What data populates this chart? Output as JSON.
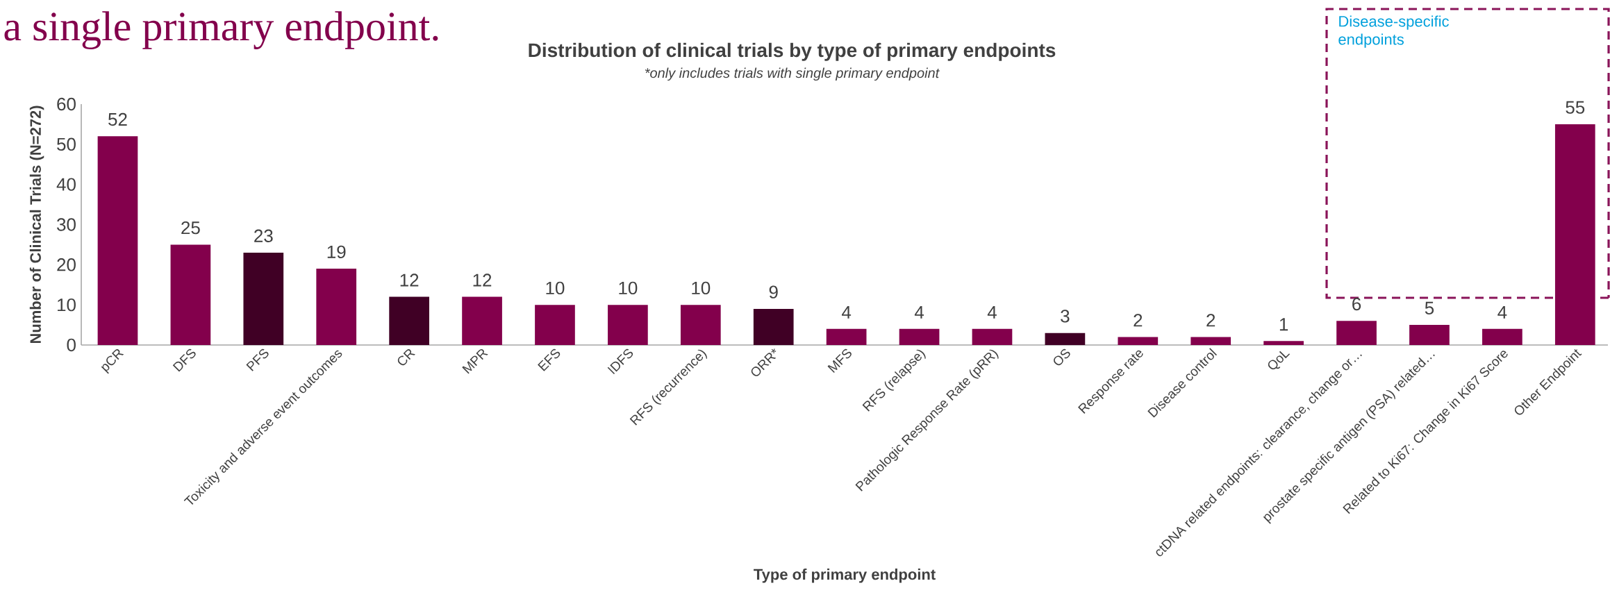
{
  "chart_data": {
    "type": "bar",
    "title": "Distribution of clinical trials by type of primary endpoints",
    "subtitle": "*only includes trials with single primary endpoint",
    "xlabel": "Type of primary endpoint",
    "ylabel": "Number of Clinical Trials (N=272)",
    "categories": [
      "pCR",
      "DFS",
      "PFS",
      "Toxicity and adverse event outcomes",
      "CR",
      "MPR",
      "EFS",
      "IDFS",
      "RFS (recurrence)",
      "ORR*",
      "MFS",
      "RFS (relapse)",
      "Pathologic Response Rate (pRR)",
      "OS",
      "Response rate",
      "Disease control",
      "QoL",
      "ctDNA related endpoints: clearance, change or…",
      "prostate specific antigen (PSA) related…",
      "Related to Ki67: Change in Ki67 Score",
      "Other Endpoint"
    ],
    "values": [
      52,
      25,
      23,
      19,
      12,
      12,
      10,
      10,
      10,
      9,
      4,
      4,
      4,
      3,
      2,
      2,
      1,
      6,
      5,
      4,
      55
    ],
    "colors": [
      "#83004c",
      "#83004c",
      "#400025",
      "#83004c",
      "#400025",
      "#83004c",
      "#83004c",
      "#83004c",
      "#83004c",
      "#400025",
      "#83004c",
      "#83004c",
      "#83004c",
      "#400025",
      "#83004c",
      "#83004c",
      "#83004c",
      "#83004c",
      "#83004c",
      "#83004c",
      "#83004c"
    ],
    "ylim": [
      0,
      60
    ],
    "yticks": [
      0,
      10,
      20,
      30,
      40,
      50,
      60
    ],
    "data_labels": true,
    "annotations": [
      "a single primary endpoint.",
      "Disease-specific endpoints"
    ]
  }
}
